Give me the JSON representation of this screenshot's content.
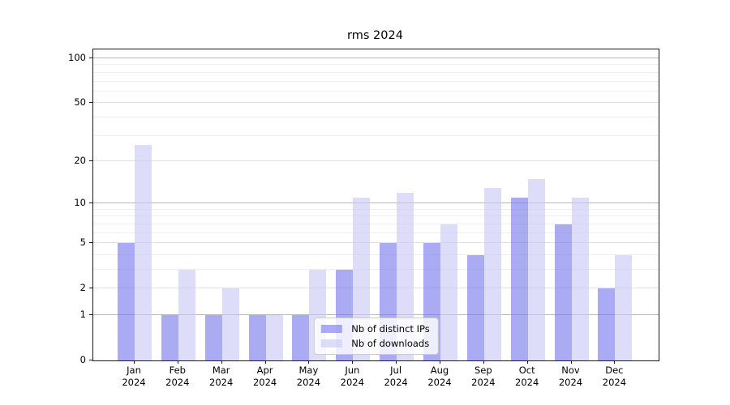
{
  "title": "rms 2024",
  "chart_data": {
    "type": "bar",
    "title": "rms 2024",
    "categories": [
      "Jan",
      "Feb",
      "Mar",
      "Apr",
      "May",
      "Jun",
      "Jul",
      "Aug",
      "Sep",
      "Oct",
      "Nov",
      "Dec"
    ],
    "category_sublabel": "2024",
    "series": [
      {
        "name": "Nb of distinct IPs",
        "color": "#7878EB9E",
        "values": [
          5,
          1,
          1,
          1,
          1,
          3,
          5,
          5,
          4,
          11,
          7,
          2
        ]
      },
      {
        "name": "Nb of downloads",
        "color": "#C8C8F59E",
        "values": [
          26,
          3,
          2,
          1,
          3,
          11,
          12,
          7,
          13,
          15,
          11,
          4
        ]
      }
    ],
    "xlabel": "",
    "ylabel": "",
    "y_scale": "log10(1+x)",
    "y_tick_labels": [
      100,
      50,
      20,
      10,
      5,
      2,
      1,
      0
    ],
    "ylim": [
      0,
      115
    ],
    "grid": "on",
    "grid_major_color": "#b8b8b8",
    "grid_labeled_color": "#e2e2e2",
    "grid_minor_color": "#efefef",
    "legend_position": "lower center inside plot"
  }
}
